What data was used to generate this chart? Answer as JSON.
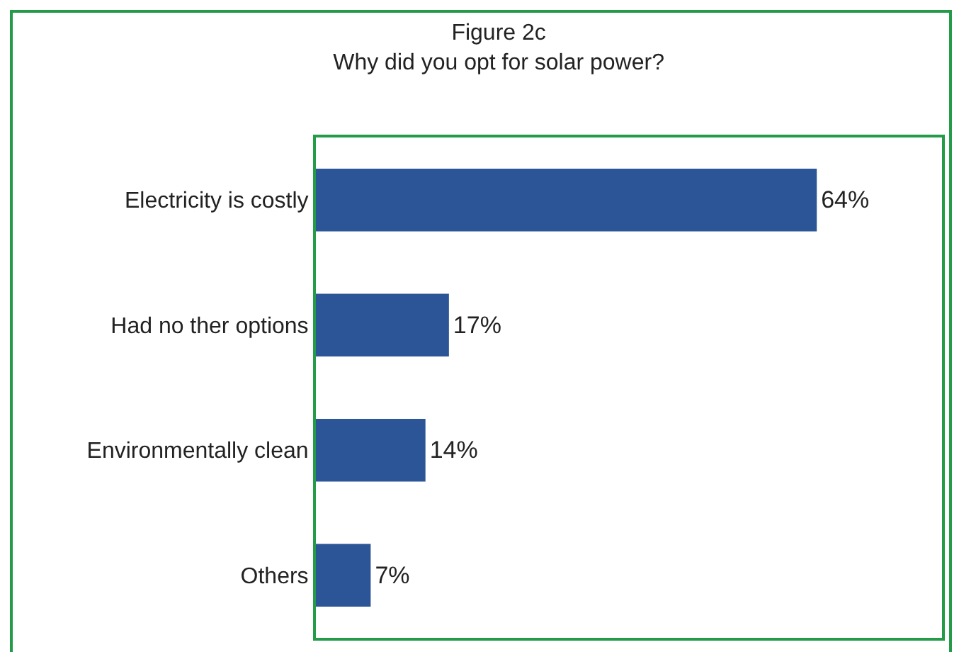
{
  "chart_data": {
    "type": "bar",
    "orientation": "horizontal",
    "title": "Figure 2c",
    "subtitle": "Why did you opt for solar power?",
    "categories": [
      "Electricity is costly",
      "Had no ther options",
      "Environmentally clean",
      "Others"
    ],
    "values": [
      64,
      17,
      14,
      7
    ],
    "value_labels": [
      "64%",
      "17%",
      "14%",
      "7%"
    ],
    "color": "#2b5597",
    "xlim": [
      0,
      80
    ]
  }
}
